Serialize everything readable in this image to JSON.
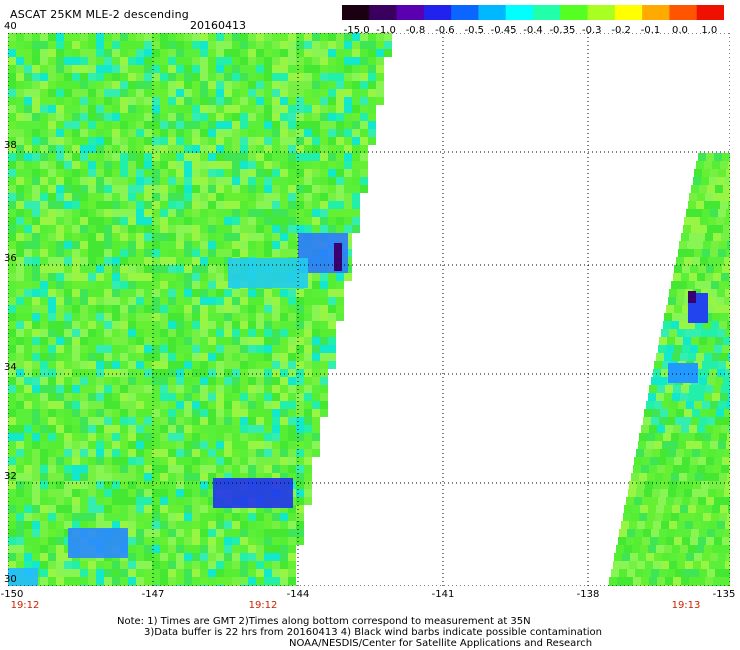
{
  "title": "ASCAT 25KM MLE-2 descending",
  "date": "20160413",
  "colorbar": {
    "labels": [
      "-15.0",
      "-1.0",
      "-0.8",
      "-0.6",
      "-0.5",
      "-0.45",
      "-0.4",
      "-0.35",
      "-0.3",
      "-0.2",
      "-0.1",
      "0.0",
      "1.0"
    ],
    "colors": [
      "#1a0010",
      "#3a0060",
      "#5a00b0",
      "#2222ee",
      "#0a66ff",
      "#00b8ff",
      "#00ffff",
      "#22ffaa",
      "#55ff22",
      "#aaff22",
      "#ffff00",
      "#ffaa00",
      "#ff5500",
      "#ee1100"
    ]
  },
  "map": {
    "lat_labels": [
      "40",
      "38",
      "36",
      "34",
      "32",
      "30"
    ],
    "lon_labels": [
      "-150",
      "-147",
      "-144",
      "-141",
      "-138",
      "-135"
    ],
    "time_labels": [
      "19:12",
      "19:12",
      "19:13"
    ],
    "background": "#ffffff",
    "grid_style": "dotted"
  },
  "notes": {
    "line1": "Note: 1) Times are GMT 2)Times along bottom correspond to measurement at 35N",
    "line2": "3)Data buffer is 22 hrs from 20160413 4) Black wind barbs indicate possible contamination",
    "line3": "NOAA/NESDIS/Center for Satellite Applications and Research"
  }
}
